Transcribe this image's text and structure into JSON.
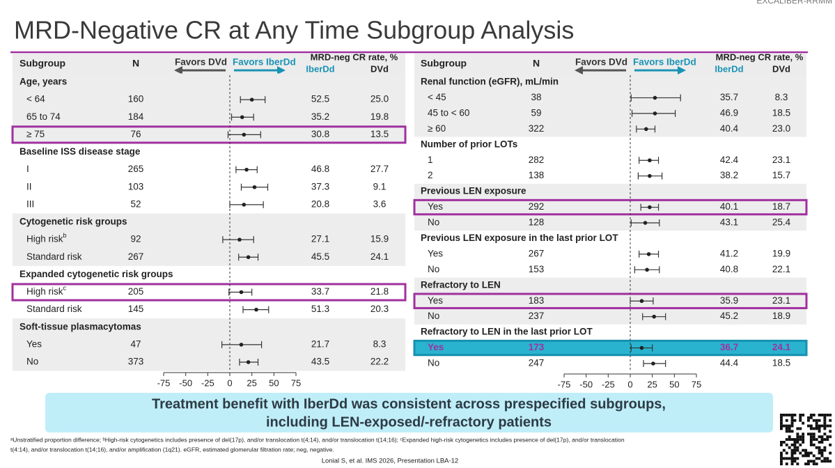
{
  "header": {
    "title": "MRD-Negative CR at Any Time Subgroup Analysis",
    "corner": "EXCALIBER-RRMM"
  },
  "chart_data": [
    {
      "type": "forest",
      "xlim": [
        -75,
        75
      ],
      "xticks": [
        -75,
        -50,
        -25,
        0,
        25,
        50,
        75
      ],
      "point_color": "#222222",
      "ref_line": "dashed",
      "headers": {
        "subgroup": "Subgroup",
        "n": "N",
        "favors_left": "Favors DVd",
        "favors_right": "Favors IberDd",
        "rate": "MRD-neg CR rate, %",
        "arm1": "IberDd",
        "arm2": "DVd"
      },
      "groups": [
        {
          "label": "Age, years",
          "rows": [
            {
              "label": "< 64",
              "n": 160,
              "arm1": "52.5",
              "arm2": "25.0",
              "estimate": 25,
              "ci": [
                12,
                40
              ]
            },
            {
              "label": "65 to 74",
              "n": 184,
              "arm1": "35.2",
              "arm2": "19.8",
              "estimate": 14,
              "ci": [
                2,
                27
              ]
            },
            {
              "label": "≥ 75",
              "n": 76,
              "arm1": "30.8",
              "arm2": "13.5",
              "estimate": 16,
              "ci": [
                -2,
                35
              ],
              "highlight": "#a0309f"
            }
          ]
        },
        {
          "label": "Baseline ISS disease stage",
          "rows": [
            {
              "label": "I",
              "n": 265,
              "arm1": "46.8",
              "arm2": "27.7",
              "estimate": 19,
              "ci": [
                7,
                31
              ]
            },
            {
              "label": "II",
              "n": 103,
              "arm1": "37.3",
              "arm2": "9.1",
              "estimate": 28,
              "ci": [
                13,
                43
              ]
            },
            {
              "label": "III",
              "n": 52,
              "arm1": "20.8",
              "arm2": "3.6",
              "estimate": 16,
              "ci": [
                0,
                38
              ]
            }
          ]
        },
        {
          "label": "Cytogenetic risk groups",
          "rows": [
            {
              "label": "High risk",
              "sup": "b",
              "n": 92,
              "arm1": "27.1",
              "arm2": "15.9",
              "estimate": 11,
              "ci": [
                -8,
                27
              ]
            },
            {
              "label": "Standard risk",
              "n": 267,
              "arm1": "45.5",
              "arm2": "24.1",
              "estimate": 21,
              "ci": [
                10,
                32
              ]
            }
          ]
        },
        {
          "label": "Expanded cytogenetic risk groups",
          "rows": [
            {
              "label": "High risk",
              "sup": "c",
              "n": 205,
              "arm1": "33.7",
              "arm2": "21.8",
              "estimate": 13,
              "ci": [
                -1,
                25
              ],
              "highlight": "#a0309f"
            },
            {
              "label": "Standard risk",
              "n": 145,
              "arm1": "51.3",
              "arm2": "20.3",
              "estimate": 30,
              "ci": [
                15,
                44
              ]
            }
          ]
        },
        {
          "label": "Soft-tissue plasmacytomas",
          "rows": [
            {
              "label": "Yes",
              "n": 47,
              "arm1": "21.7",
              "arm2": "8.3",
              "estimate": 13,
              "ci": [
                -9,
                36
              ]
            },
            {
              "label": "No",
              "n": 373,
              "arm1": "43.5",
              "arm2": "22.2",
              "estimate": 21,
              "ci": [
                11,
                32
              ]
            }
          ]
        }
      ]
    },
    {
      "type": "forest",
      "xlim": [
        -75,
        75
      ],
      "xticks": [
        -75,
        -50,
        -25,
        0,
        25,
        50,
        75
      ],
      "point_color": "#222222",
      "ref_line": "dashed",
      "headers": {
        "subgroup": "Subgroup",
        "n": "N",
        "favors_left": "Favors DVd",
        "favors_right": "Favors IberDd",
        "rate": "MRD-neg CR rate, %",
        "arm1": "IberDd",
        "arm2": "DVd"
      },
      "groups": [
        {
          "label": "Renal function (eGFR), mL/min",
          "rows": [
            {
              "label": "< 45",
              "n": 38,
              "arm1": "35.7",
              "arm2": "8.3",
              "estimate": 28,
              "ci": [
                1,
                57
              ]
            },
            {
              "label": "45 to < 60",
              "n": 59,
              "arm1": "46.9",
              "arm2": "18.5",
              "estimate": 28,
              "ci": [
                2,
                51
              ]
            },
            {
              "label": "≥ 60",
              "n": 322,
              "arm1": "40.4",
              "arm2": "23.0",
              "estimate": 18,
              "ci": [
                7,
                28
              ]
            }
          ]
        },
        {
          "label": "Number of prior LOTs",
          "rows": [
            {
              "label": "1",
              "n": 282,
              "arm1": "42.4",
              "arm2": "23.1",
              "estimate": 22,
              "ci": [
                10,
                32
              ]
            },
            {
              "label": "2",
              "n": 138,
              "arm1": "38.2",
              "arm2": "15.7",
              "estimate": 22,
              "ci": [
                9,
                36
              ]
            }
          ]
        },
        {
          "label": "Previous LEN exposure",
          "rows": [
            {
              "label": "Yes",
              "n": 292,
              "arm1": "40.1",
              "arm2": "18.7",
              "estimate": 22,
              "ci": [
                12,
                32
              ],
              "highlight": "#a0309f"
            },
            {
              "label": "No",
              "n": 128,
              "arm1": "43.1",
              "arm2": "25.4",
              "estimate": 17,
              "ci": [
                1,
                33
              ]
            }
          ]
        },
        {
          "label": "Previous LEN exposure in the last prior LOT",
          "rows": [
            {
              "label": "Yes",
              "n": 267,
              "arm1": "41.2",
              "arm2": "19.9",
              "estimate": 21,
              "ci": [
                10,
                32
              ]
            },
            {
              "label": "No",
              "n": 153,
              "arm1": "40.8",
              "arm2": "22.1",
              "estimate": 19,
              "ci": [
                5,
                33
              ]
            }
          ]
        },
        {
          "label": "Refractory to LEN",
          "rows": [
            {
              "label": "Yes",
              "n": 183,
              "arm1": "35.9",
              "arm2": "23.1",
              "estimate": 13,
              "ci": [
                0,
                26
              ],
              "highlight": "#a0309f"
            },
            {
              "label": "No",
              "n": 237,
              "arm1": "45.2",
              "arm2": "18.9",
              "estimate": 27,
              "ci": [
                14,
                40
              ]
            }
          ]
        },
        {
          "label": "Refractory to LEN in the last prior LOT",
          "rows": [
            {
              "label": "Yes",
              "n": 173,
              "arm1": "36.7",
              "arm2": "24.1",
              "estimate": 13,
              "ci": [
                1,
                25
              ],
              "highlight": "#1690b0",
              "highlight_fill": "#29b3cf",
              "text_color": "#a0309f"
            },
            {
              "label": "No",
              "n": 247,
              "arm1": "44.4",
              "arm2": "18.5",
              "estimate": 26,
              "ci": [
                15,
                40
              ]
            }
          ]
        }
      ]
    }
  ],
  "banner": [
    "Treatment benefit with IberDd was consistent across prespecified subgroups,",
    "including LEN-exposed/-refractory patients"
  ],
  "footnote": [
    "ᵃUnstratified proportion difference; ᵇHigh-risk cytogenetics includes presence of del(17p), and/or translocation t(4;14), and/or translocation t(14;16); ᶜExpanded high-risk cytogenetics includes presence of del(17p), and/or translocation",
    "t(4:14), and/or translocation t(14;16), and/or amplification (1q21). eGFR, estimated glomerular filtration rate; neg, negative."
  ],
  "citation": "Lonial S, et al. IMS 2026, Presentation LBA-12"
}
